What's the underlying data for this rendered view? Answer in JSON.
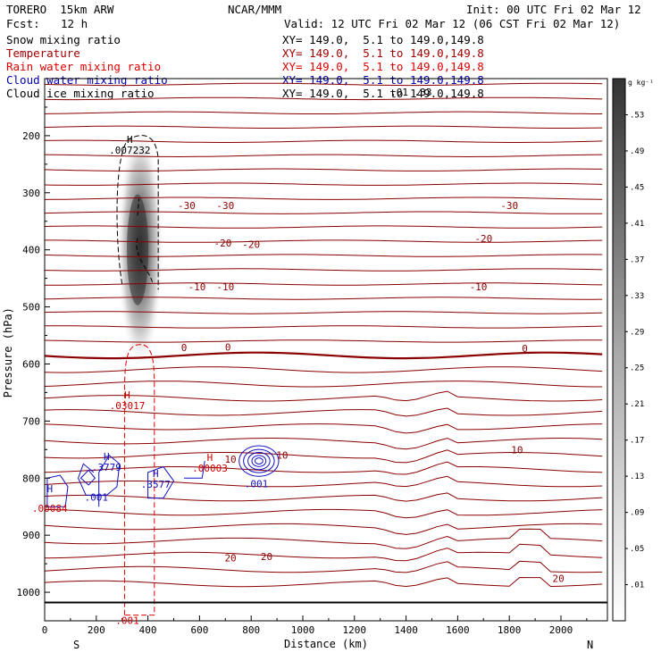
{
  "header": {
    "model": "TORERO  15km ARW",
    "center": "NCAR/MMM",
    "init": "Init: 00 UTC Fri 02 Mar 12",
    "fcst_label": "Fcst:",
    "fcst_value": "12 h",
    "valid": "Valid: 12 UTC Fri 02 Mar 12 (06 CST Fri 02 Mar 12)"
  },
  "fields": [
    {
      "name": "Snow mixing ratio",
      "xy": "XY= 149.0,  5.1 to 149.0,149.8",
      "color": "#000000"
    },
    {
      "name": "Temperature",
      "xy": "XY= 149.0,  5.1 to 149.0,149.8",
      "color": "#a00000"
    },
    {
      "name": "Rain water mixing ratio",
      "xy": "XY= 149.0,  5.1 to 149.0,149.8",
      "color": "#dd0000"
    },
    {
      "name": "Cloud water mixing ratio",
      "xy": "XY= 149.0,  5.1 to 149.0,149.8",
      "color": "#0000b0"
    },
    {
      "name": "Cloud ice mixing ratio",
      "xy": "XY= 149.0,  5.1 to 149.0,149.8",
      "color": "#000000"
    }
  ],
  "colorbar": {
    "unit": "g kg⁻¹",
    "levels": [
      ".53",
      ".49",
      ".45",
      ".41",
      ".37",
      ".33",
      ".29",
      ".25",
      ".21",
      ".17",
      ".13",
      ".09",
      ".05",
      ".01"
    ]
  },
  "chart_data": {
    "type": "contour",
    "xlabel": "Distance (km)",
    "ylabel": "Pressure (hPa)",
    "xlim": [
      0,
      2180
    ],
    "ylim": [
      1050,
      100
    ],
    "x_ticks": [
      0,
      200,
      400,
      600,
      800,
      1000,
      1200,
      1400,
      1600,
      1800,
      2000
    ],
    "y_ticks": [
      200,
      300,
      400,
      500,
      600,
      700,
      800,
      900,
      1000
    ],
    "x_end_labels": {
      "left": "S",
      "right": "N"
    },
    "temperature_labels": [
      {
        "x": 550,
        "p": 322,
        "text": "-30"
      },
      {
        "x": 700,
        "p": 322,
        "text": "-30"
      },
      {
        "x": 1800,
        "p": 322,
        "text": "-30"
      },
      {
        "x": 690,
        "p": 388,
        "text": "-20"
      },
      {
        "x": 800,
        "p": 390,
        "text": "-20"
      },
      {
        "x": 1700,
        "p": 380,
        "text": "-20"
      },
      {
        "x": 590,
        "p": 465,
        "text": "-10"
      },
      {
        "x": 700,
        "p": 465,
        "text": "-10"
      },
      {
        "x": 1680,
        "p": 465,
        "text": "-10"
      },
      {
        "x": 540,
        "p": 571,
        "text": "0"
      },
      {
        "x": 710,
        "p": 570,
        "text": "0"
      },
      {
        "x": 1860,
        "p": 573,
        "text": "0"
      },
      {
        "x": 720,
        "p": 767,
        "text": "10"
      },
      {
        "x": 920,
        "p": 760,
        "text": "10"
      },
      {
        "x": 1830,
        "p": 750,
        "text": "10"
      },
      {
        "x": 720,
        "p": 940,
        "text": "20"
      },
      {
        "x": 860,
        "p": 937,
        "text": "20"
      },
      {
        "x": 1990,
        "p": 976,
        "text": "20"
      }
    ],
    "cloud_water_contour_label": ".001",
    "markers": [
      {
        "field": "snow",
        "x": 330,
        "p": 213,
        "h": "H",
        "value": ".007232"
      },
      {
        "field": "rain",
        "x": 320,
        "p": 660,
        "h": "H",
        "value": ".03017"
      },
      {
        "field": "cloud_water",
        "x": 240,
        "p": 768,
        "h": "H",
        "value": ".3779"
      },
      {
        "field": "cloud_water",
        "x": 430,
        "p": 798,
        "h": "H",
        "value": ".3577"
      },
      {
        "field": "cloud_water",
        "x": 20,
        "p": 825,
        "h": "H",
        "value": ""
      },
      {
        "field": "rain",
        "x": 20,
        "p": 840,
        "h": "",
        "value": ".00084"
      },
      {
        "field": "rain",
        "x": 640,
        "p": 770,
        "h": "H",
        "value": ".00003"
      },
      {
        "field": "cloud_water",
        "x": 820,
        "p": 797,
        "h": "",
        "value": ".001"
      },
      {
        "field": "cloud_water",
        "x": 200,
        "p": 821,
        "h": "",
        "value": ".001"
      },
      {
        "field": "rain",
        "x": 320,
        "p": 1037,
        "h": "",
        "value": ".001"
      },
      {
        "field": "cloud_ice",
        "x": 1420,
        "p": 111,
        "h": "",
        "value": ".01 .33"
      }
    ]
  }
}
